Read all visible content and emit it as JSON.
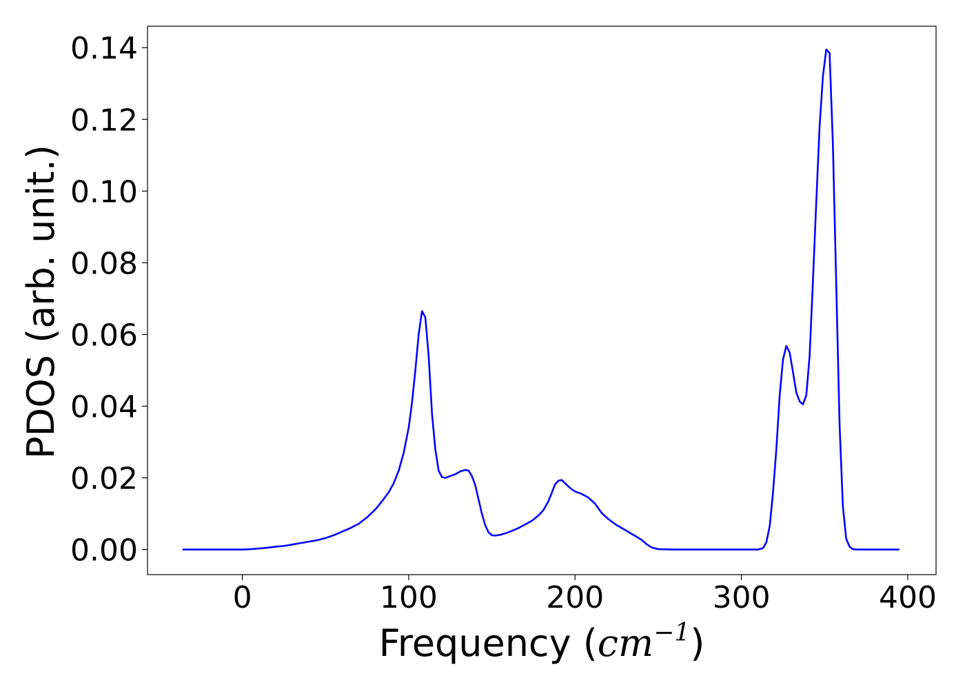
{
  "chart_data": {
    "type": "line",
    "title": "",
    "xlabel_prefix": "Frequency (",
    "xlabel_cm": "cm",
    "xlabel_exp": "−1",
    "xlabel_suffix": ")",
    "ylabel": "PDOS (arb. unit.)",
    "xlim": [
      -57,
      417
    ],
    "ylim": [
      -0.007,
      0.146
    ],
    "xticks": [
      0,
      100,
      200,
      300,
      400
    ],
    "xtick_labels": [
      "0",
      "100",
      "200",
      "300",
      "400"
    ],
    "yticks": [
      0.0,
      0.02,
      0.04,
      0.06,
      0.08,
      0.1,
      0.12,
      0.14
    ],
    "ytick_labels": [
      "0.00",
      "0.02",
      "0.04",
      "0.06",
      "0.08",
      "0.10",
      "0.12",
      "0.14"
    ],
    "grid": false,
    "legend": "none",
    "series": [
      {
        "color": "#0000ff",
        "x": [
          -36,
          -20,
          0,
          5,
          10,
          15,
          20,
          25,
          30,
          35,
          40,
          45,
          50,
          55,
          60,
          65,
          70,
          75,
          80,
          84,
          88,
          91,
          94,
          97,
          100,
          102,
          104,
          106,
          108,
          110,
          112,
          114,
          116,
          118,
          120,
          122,
          125,
          128,
          131,
          134,
          136,
          138,
          140,
          142,
          144,
          146,
          148,
          150,
          152,
          155,
          158,
          162,
          166,
          170,
          174,
          178,
          181,
          184,
          186,
          188,
          190,
          192,
          194,
          196,
          198,
          200,
          204,
          208,
          212,
          216,
          220,
          225,
          230,
          235,
          240,
          243,
          246,
          250,
          260,
          280,
          300,
          310,
          313,
          315,
          317,
          319,
          321,
          323,
          325,
          327,
          329,
          331,
          333,
          335,
          337,
          339,
          341,
          343,
          345,
          347,
          349,
          351,
          353,
          355,
          357,
          359,
          361,
          363,
          365,
          367,
          369,
          371,
          375,
          385,
          395
        ],
        "y": [
          0.0,
          0.0,
          0.0,
          0.0001,
          0.0003,
          0.0005,
          0.0008,
          0.001,
          0.0014,
          0.0018,
          0.0022,
          0.0026,
          0.0032,
          0.004,
          0.005,
          0.006,
          0.0072,
          0.009,
          0.0112,
          0.0135,
          0.016,
          0.0185,
          0.022,
          0.027,
          0.034,
          0.041,
          0.05,
          0.06,
          0.0665,
          0.0648,
          0.054,
          0.038,
          0.028,
          0.022,
          0.0202,
          0.02,
          0.0205,
          0.021,
          0.0218,
          0.0222,
          0.022,
          0.0205,
          0.018,
          0.014,
          0.01,
          0.0068,
          0.0048,
          0.004,
          0.0039,
          0.0041,
          0.0045,
          0.0052,
          0.006,
          0.007,
          0.008,
          0.0095,
          0.011,
          0.0135,
          0.0158,
          0.0182,
          0.0192,
          0.0194,
          0.0185,
          0.0176,
          0.0168,
          0.0162,
          0.0155,
          0.0145,
          0.0128,
          0.0102,
          0.0085,
          0.0068,
          0.0055,
          0.0041,
          0.0027,
          0.0015,
          0.0006,
          0.0001,
          0.0,
          0.0,
          0.0,
          0.0,
          0.0004,
          0.002,
          0.0065,
          0.016,
          0.028,
          0.043,
          0.053,
          0.0568,
          0.055,
          0.0495,
          0.0438,
          0.0413,
          0.0405,
          0.043,
          0.054,
          0.075,
          0.097,
          0.118,
          0.132,
          0.1395,
          0.1385,
          0.113,
          0.074,
          0.035,
          0.012,
          0.003,
          0.0008,
          0.0001,
          0.0,
          0.0,
          0.0,
          0.0,
          0.0
        ]
      }
    ]
  }
}
